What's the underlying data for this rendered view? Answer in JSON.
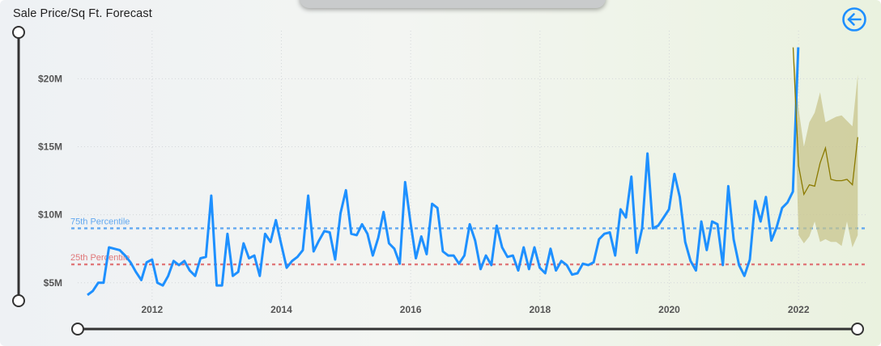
{
  "header": {
    "title": "Sale Price/Sq Ft. Forecast",
    "back_icon": "arrow-left-circle-icon"
  },
  "colors": {
    "actual": "#1e90ff",
    "forecast": "#8b7a00",
    "forecast_band": "#c8c48c",
    "p75": "#62a8f0",
    "p25": "#e0787a",
    "back": "#1e8fff"
  },
  "reference_lines": [
    {
      "label": "75th Percentile",
      "value": 9.0
    },
    {
      "label": "25th Percentile",
      "value": 6.35
    }
  ],
  "chart_data": {
    "type": "line",
    "title": "Sale Price/Sq Ft. Forecast",
    "xlabel": "",
    "ylabel": "",
    "xlim": [
      2010.85,
      2023.05
    ],
    "ylim": [
      3.5,
      24.0
    ],
    "x_ticks": [
      {
        "value": 2012,
        "label": "2012"
      },
      {
        "value": 2014,
        "label": "2014"
      },
      {
        "value": 2016,
        "label": "2016"
      },
      {
        "value": 2018,
        "label": "2018"
      },
      {
        "value": 2020,
        "label": "2020"
      },
      {
        "value": 2022,
        "label": "2022"
      }
    ],
    "y_ticks": [
      {
        "value": 5,
        "label": "$5M"
      },
      {
        "value": 10,
        "label": "$10M"
      },
      {
        "value": 15,
        "label": "$15M"
      },
      {
        "value": 20,
        "label": "$20M"
      }
    ],
    "grid": true,
    "series": [
      {
        "x_start": 2011.0,
        "x_step": 0.0833,
        "values": [
          4.1,
          4.4,
          5.0,
          5.0,
          7.6,
          7.5,
          7.4,
          7.0,
          6.5,
          5.8,
          5.2,
          6.5,
          6.7,
          5.0,
          4.8,
          5.5,
          6.6,
          6.3,
          6.6,
          5.9,
          5.5,
          6.8,
          6.9,
          11.4,
          4.8,
          4.8,
          8.6,
          5.5,
          5.8,
          7.9,
          6.8,
          7.0,
          5.5,
          8.6,
          8.0,
          9.6,
          7.8,
          6.1,
          6.6,
          6.9,
          7.4,
          11.4,
          7.3,
          8.1,
          8.8,
          8.7,
          6.7,
          10.1,
          11.8,
          8.6,
          8.5,
          9.3,
          8.6,
          7.0,
          8.3,
          10.2,
          7.9,
          7.5,
          6.4,
          12.4,
          9.4,
          6.8,
          8.4,
          7.1,
          10.8,
          10.5,
          7.3,
          7.0,
          7.0,
          6.4,
          7.0,
          9.3,
          8.1,
          6.0,
          7.0,
          6.3,
          9.2,
          7.6,
          6.9,
          7.0,
          5.9,
          7.6,
          6.0,
          7.6,
          6.1,
          5.7,
          7.5,
          5.9,
          6.6,
          6.3,
          5.6,
          5.7,
          6.4,
          6.3,
          6.5,
          8.2,
          8.6,
          8.7,
          7.0,
          10.4,
          9.8,
          12.8,
          7.2,
          9.0,
          14.5,
          9.0,
          9.2,
          9.8,
          10.4,
          13.0,
          11.3,
          8.0,
          6.6,
          5.9,
          9.5,
          7.4,
          9.5,
          9.3,
          6.3,
          12.1,
          8.2,
          6.3,
          5.5,
          6.7,
          11.0,
          9.5,
          11.3,
          8.1,
          9.1,
          10.5,
          10.9,
          11.7,
          22.3
        ]
      },
      {
        "x_start": 2021.917,
        "x_step": 0.0833,
        "values": [
          22.3,
          13.6,
          11.5,
          12.2,
          12.1,
          13.8,
          14.9,
          12.6,
          12.5,
          12.5,
          12.6,
          12.2,
          15.7
        ],
        "lower": [
          22.3,
          8.5,
          7.9,
          8.4,
          9.5,
          8.0,
          8.2,
          8.0,
          8.0,
          7.7,
          9.5,
          7.6,
          8.5
        ],
        "upper": [
          22.3,
          17.8,
          15.0,
          16.8,
          17.5,
          19.0,
          16.8,
          17.0,
          17.2,
          17.3,
          16.9,
          16.5,
          20.3
        ]
      }
    ]
  }
}
